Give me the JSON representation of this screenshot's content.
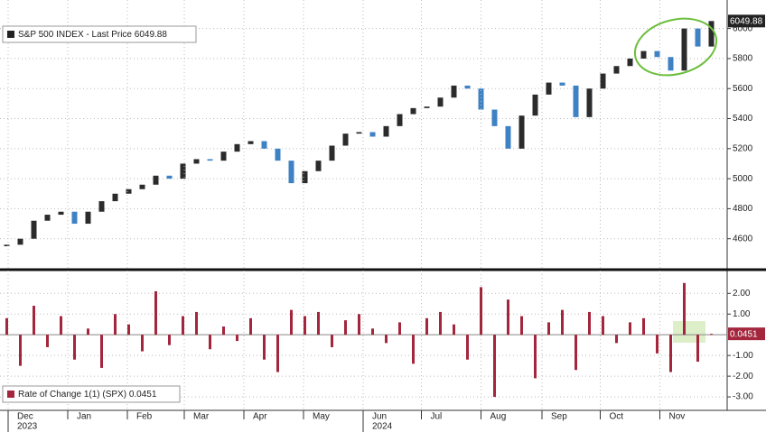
{
  "chart_data": [
    {
      "type": "candlestick",
      "legend": "S&P 500 INDEX - Last Price 6049.88",
      "last_label": "6049.88",
      "up_color": "#2b2b2b",
      "down_color": "#3f82c4",
      "open": [
        4550,
        4560,
        4600,
        4720,
        4760,
        4780,
        4700,
        4780,
        4850,
        4900,
        4930,
        4960,
        5020,
        5000,
        5100,
        5130,
        5120,
        5180,
        5230,
        5250,
        5200,
        5120,
        4970,
        5050,
        5120,
        5220,
        5300,
        5310,
        5280,
        5350,
        5430,
        5470,
        5480,
        5540,
        5620,
        5600,
        5460,
        5350,
        5200,
        5420,
        5560,
        5640,
        5620,
        5410,
        5600,
        5700,
        5750,
        5800,
        5850,
        5810,
        5720,
        6000,
        5880
      ],
      "close": [
        4560,
        4600,
        4720,
        4760,
        4780,
        4700,
        4780,
        4850,
        4900,
        4930,
        4960,
        5020,
        5000,
        5100,
        5130,
        5120,
        5180,
        5230,
        5250,
        5200,
        5120,
        4970,
        5050,
        5120,
        5220,
        5300,
        5310,
        5280,
        5350,
        5430,
        5470,
        5480,
        5540,
        5620,
        5600,
        5460,
        5350,
        5200,
        5420,
        5560,
        5640,
        5620,
        5410,
        5600,
        5700,
        5750,
        5800,
        5850,
        5810,
        5720,
        6000,
        5880,
        6049.88
      ],
      "ylim": [
        4400,
        6190
      ],
      "yticks": [
        4600,
        4800,
        5000,
        5200,
        5400,
        5600,
        5800,
        6000
      ],
      "grid": true
    },
    {
      "type": "bar",
      "legend": "Rate of Change 1(1) (SPX) 0.0451",
      "last_label": "0.0451",
      "color": "#a3263d",
      "values": [
        0.8,
        -1.5,
        1.4,
        -0.6,
        0.9,
        -1.2,
        0.3,
        -1.6,
        1.0,
        0.5,
        -0.8,
        2.1,
        -0.5,
        0.9,
        1.1,
        -0.7,
        0.4,
        -0.3,
        0.8,
        -1.2,
        -1.8,
        1.2,
        0.9,
        1.1,
        -0.6,
        0.7,
        1.0,
        0.3,
        -0.4,
        0.6,
        -1.4,
        0.8,
        1.1,
        0.5,
        -1.2,
        2.3,
        -3.0,
        1.7,
        0.9,
        -2.1,
        0.6,
        1.2,
        -1.7,
        1.1,
        0.9,
        -0.4,
        0.6,
        0.8,
        -0.9,
        -1.8,
        2.5,
        -1.3,
        0.0451
      ],
      "ylim": [
        -3.65,
        3.1
      ],
      "yticks": [
        {
          "value": 2,
          "label": "2.00"
        },
        {
          "value": 1,
          "label": "1.00"
        },
        {
          "value": -1,
          "label": "-1.00"
        },
        {
          "value": -2,
          "label": "-2.00"
        },
        {
          "value": -3,
          "label": "-3.00"
        }
      ],
      "xticks": [
        {
          "value": 0.6,
          "label": "Dec"
        },
        {
          "value": 5,
          "label": "Jan"
        },
        {
          "value": 9.4,
          "label": "Feb"
        },
        {
          "value": 13.6,
          "label": "Mar"
        },
        {
          "value": 18,
          "label": "Apr"
        },
        {
          "value": 22.4,
          "label": "May"
        },
        {
          "value": 26.8,
          "label": "Jun"
        },
        {
          "value": 31.1,
          "label": "Jul"
        },
        {
          "value": 35.5,
          "label": "Aug"
        },
        {
          "value": 40,
          "label": "Sep"
        },
        {
          "value": 44.3,
          "label": "Oct"
        },
        {
          "value": 48.7,
          "label": "Nov"
        }
      ],
      "year_ticks": [
        {
          "value": 0.6,
          "label": "2023"
        },
        {
          "value": 26.8,
          "label": "2024"
        }
      ],
      "grid": true
    }
  ]
}
